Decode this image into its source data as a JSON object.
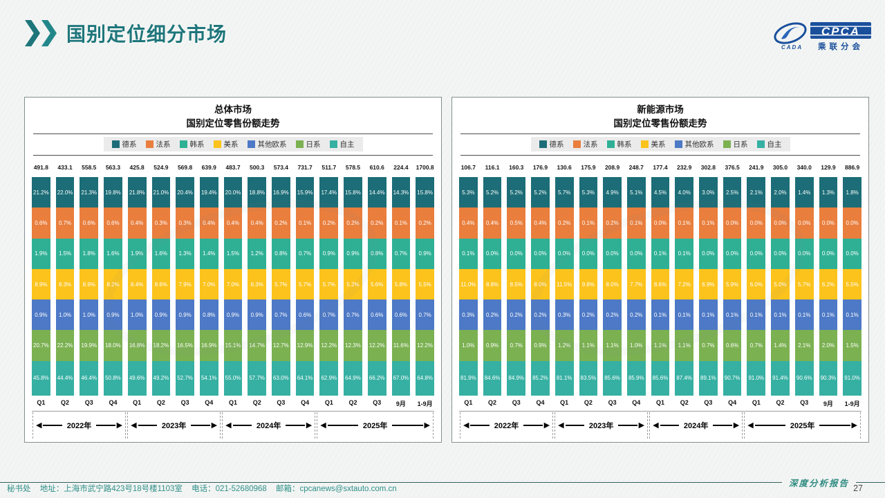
{
  "header": {
    "title": "国别定位细分市场"
  },
  "logo": {
    "cpca": "CPCA",
    "cada": "CADA",
    "cn_name": "乘联分会"
  },
  "colors": {
    "accent_teal": "#1e767b",
    "logo_blue": "#1a4f9c",
    "footer_teal": "#2e8f88"
  },
  "year_groups_note": "year group brackets shown under both charts",
  "chart_data": [
    {
      "type": "bar",
      "stacked": true,
      "title": "总体市场",
      "subtitle": "国别定位零售份额走势",
      "unit": "percent share, totals in 万辆-scale units shown above bars",
      "ylim": [
        0,
        100
      ],
      "legend_position": "top",
      "series_order": "top-to-bottom",
      "categories": [
        "Q1",
        "Q2",
        "Q3",
        "Q4",
        "Q1",
        "Q2",
        "Q3",
        "Q4",
        "Q1",
        "Q2",
        "Q3",
        "Q4",
        "Q1",
        "Q2",
        "Q3",
        "9月",
        "1-9月"
      ],
      "year_groups": [
        {
          "label": "2022年",
          "span": 4
        },
        {
          "label": "2023年",
          "span": 4
        },
        {
          "label": "2024年",
          "span": 4
        },
        {
          "label": "2025年",
          "span": 5
        }
      ],
      "totals": [
        491.8,
        433.1,
        558.5,
        563.3,
        425.8,
        524.9,
        569.8,
        639.9,
        483.7,
        500.3,
        573.4,
        731.7,
        511.7,
        578.5,
        610.6,
        224.4,
        1700.8
      ],
      "series": [
        {
          "name": "德系",
          "color": "#1c6d77",
          "values": [
            21.2,
            22.0,
            21.3,
            19.8,
            21.8,
            21.0,
            20.4,
            19.4,
            20.0,
            18.8,
            16.9,
            15.9,
            17.4,
            15.8,
            14.4,
            14.3,
            15.8
          ]
        },
        {
          "name": "法系",
          "color": "#e97e3d",
          "values": [
            0.6,
            0.7,
            0.6,
            0.6,
            0.4,
            0.3,
            0.3,
            0.4,
            0.4,
            0.4,
            0.2,
            0.1,
            0.2,
            0.2,
            0.2,
            0.1,
            0.2
          ]
        },
        {
          "name": "韩系",
          "color": "#2fb095",
          "values": [
            1.9,
            1.5,
            1.8,
            1.6,
            1.9,
            1.6,
            1.3,
            1.4,
            1.5,
            1.2,
            0.8,
            0.7,
            0.9,
            0.9,
            0.8,
            0.7,
            0.9
          ]
        },
        {
          "name": "美系",
          "color": "#fcc31c",
          "values": [
            8.9,
            8.3,
            8.9,
            8.2,
            8.4,
            8.6,
            7.9,
            7.0,
            7.0,
            6.3,
            5.7,
            5.7,
            5.7,
            5.2,
            5.6,
            5.8,
            5.5
          ]
        },
        {
          "name": "其他欧系",
          "color": "#4d79c6",
          "values": [
            0.9,
            1.0,
            1.0,
            0.9,
            1.0,
            0.9,
            0.9,
            0.8,
            0.9,
            0.9,
            0.7,
            0.6,
            0.7,
            0.7,
            0.6,
            0.6,
            0.7
          ]
        },
        {
          "name": "日系",
          "color": "#7cb152",
          "values": [
            20.7,
            22.2,
            19.9,
            18.0,
            16.8,
            18.2,
            16.5,
            16.9,
            15.1,
            14.7,
            12.7,
            12.9,
            12.2,
            12.3,
            12.2,
            11.6,
            12.2
          ]
        },
        {
          "name": "自主",
          "color": "#36b0a2",
          "values": [
            45.8,
            44.4,
            46.4,
            50.8,
            49.6,
            49.2,
            52.7,
            54.1,
            55.0,
            57.7,
            63.0,
            64.1,
            62.9,
            64.9,
            66.2,
            67.0,
            64.8
          ]
        }
      ]
    },
    {
      "type": "bar",
      "stacked": true,
      "title": "新能源市场",
      "subtitle": "国别定位零售份额走势",
      "unit": "percent share, totals in 万辆-scale units shown above bars",
      "ylim": [
        0,
        100
      ],
      "legend_position": "top",
      "series_order": "top-to-bottom",
      "categories": [
        "Q1",
        "Q2",
        "Q3",
        "Q4",
        "Q1",
        "Q2",
        "Q3",
        "Q4",
        "Q1",
        "Q2",
        "Q3",
        "Q4",
        "Q1",
        "Q2",
        "Q3",
        "9月",
        "1-9月"
      ],
      "year_groups": [
        {
          "label": "2022年",
          "span": 4
        },
        {
          "label": "2023年",
          "span": 4
        },
        {
          "label": "2024年",
          "span": 4
        },
        {
          "label": "2025年",
          "span": 5
        }
      ],
      "totals": [
        106.7,
        116.1,
        160.3,
        176.9,
        130.6,
        175.9,
        208.9,
        248.7,
        177.4,
        232.9,
        302.8,
        376.5,
        241.9,
        305.0,
        340.0,
        129.9,
        886.9
      ],
      "series": [
        {
          "name": "德系",
          "color": "#1c6d77",
          "values": [
            5.3,
            5.2,
            5.2,
            5.2,
            5.7,
            5.3,
            4.9,
            5.1,
            4.5,
            4.0,
            3.0,
            2.5,
            2.1,
            2.0,
            1.4,
            1.3,
            1.8
          ]
        },
        {
          "name": "法系",
          "color": "#e97e3d",
          "values": [
            0.4,
            0.4,
            0.5,
            0.4,
            0.2,
            0.1,
            0.2,
            0.1,
            0.0,
            0.1,
            0.1,
            0.0,
            0.0,
            0.0,
            0.0,
            0.0,
            0.0
          ]
        },
        {
          "name": "韩系",
          "color": "#2fb095",
          "values": [
            0.1,
            0.0,
            0.0,
            0.0,
            0.0,
            0.0,
            0.0,
            0.0,
            0.1,
            0.1,
            0.0,
            0.0,
            0.0,
            0.0,
            0.0,
            0.0,
            0.0
          ]
        },
        {
          "name": "美系",
          "color": "#fcc31c",
          "values": [
            11.0,
            8.8,
            8.5,
            8.0,
            11.5,
            9.8,
            8.0,
            7.7,
            8.6,
            7.2,
            6.9,
            5.9,
            6.0,
            5.0,
            5.7,
            6.2,
            5.5
          ]
        },
        {
          "name": "其他欧系",
          "color": "#4d79c6",
          "values": [
            0.3,
            0.2,
            0.2,
            0.2,
            0.3,
            0.2,
            0.2,
            0.2,
            0.1,
            0.1,
            0.1,
            0.1,
            0.1,
            0.1,
            0.1,
            0.1,
            0.1
          ]
        },
        {
          "name": "日系",
          "color": "#7cb152",
          "values": [
            1.0,
            0.9,
            0.7,
            0.9,
            1.2,
            1.1,
            1.1,
            1.0,
            1.1,
            1.1,
            0.7,
            0.6,
            0.7,
            1.4,
            2.1,
            2.0,
            1.5
          ]
        },
        {
          "name": "自主",
          "color": "#36b0a2",
          "values": [
            81.9,
            84.6,
            84.9,
            85.2,
            81.1,
            83.5,
            85.6,
            85.9,
            85.6,
            87.4,
            89.1,
            90.7,
            91.0,
            91.4,
            90.6,
            90.3,
            91.0
          ]
        }
      ]
    }
  ],
  "footer": {
    "secretariat": "秘书处",
    "address": "地址：上海市武宁路423号18号楼1103室",
    "phone": "电话：021-52680968",
    "email": "邮箱：cpcanews@sxtauto.com.cn",
    "report_type": "深度分析报告",
    "page_number": "27"
  }
}
